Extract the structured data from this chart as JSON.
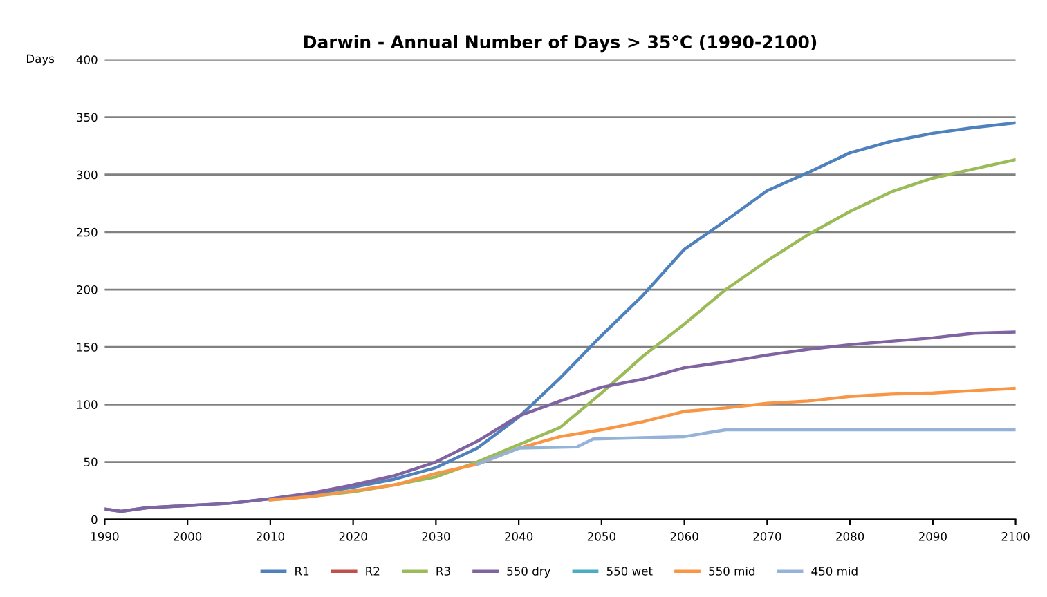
{
  "chart_data": {
    "type": "line",
    "title": "Darwin - Annual Number of Days > 35°C (1990-2100)",
    "ylabel": "Days",
    "x": [
      1990,
      1992,
      1995,
      2000,
      2005,
      2010,
      2015,
      2020,
      2025,
      2030,
      2035,
      2040,
      2045,
      2050,
      2055,
      2060,
      2065,
      2070,
      2075,
      2080,
      2085,
      2090,
      2095,
      2100
    ],
    "series": [
      {
        "name": "R1",
        "color": "#4f81bd",
        "values": [
          9,
          7,
          10,
          12,
          14,
          18,
          22,
          28,
          35,
          45,
          62,
          89,
          123,
          160,
          195,
          235,
          260,
          286,
          302,
          319,
          329,
          336,
          341,
          345
        ]
      },
      {
        "name": "R2",
        "color": "#c0504d",
        "values": [
          null,
          null,
          null,
          null,
          null,
          null,
          null,
          null,
          null,
          null,
          null,
          null,
          null,
          null,
          null,
          null,
          null,
          null,
          null,
          null,
          null,
          null,
          null,
          null
        ]
      },
      {
        "name": "R3",
        "color": "#9bbb59",
        "values": [
          null,
          null,
          null,
          null,
          null,
          17,
          20,
          24,
          30,
          37,
          50,
          65,
          80,
          110,
          142,
          170,
          200,
          225,
          248,
          268,
          285,
          297,
          305,
          313
        ]
      },
      {
        "name": "550 dry",
        "color": "#8064a2",
        "values": [
          9,
          7,
          10,
          12,
          14,
          18,
          23,
          30,
          38,
          50,
          68,
          90,
          103,
          115,
          122,
          132,
          137,
          143,
          148,
          152,
          155,
          158,
          162,
          163
        ]
      },
      {
        "name": "550 wet",
        "color": "#4bacc6",
        "values": [
          null,
          null,
          null,
          null,
          null,
          null,
          null,
          null,
          null,
          null,
          null,
          null,
          null,
          null,
          null,
          null,
          null,
          null,
          null,
          null,
          null,
          null,
          null,
          null
        ]
      },
      {
        "name": "550 mid",
        "color": "#f79646",
        "values": [
          null,
          null,
          null,
          null,
          null,
          17,
          20,
          25,
          30,
          40,
          48,
          62,
          72,
          78,
          85,
          94,
          97,
          101,
          103,
          107,
          109,
          110,
          112,
          114
        ]
      },
      {
        "name": "450 mid",
        "color": "#95b3d7",
        "x": [
          2035,
          2040,
          2047,
          2049,
          2060,
          2065,
          2100
        ],
        "values": [
          48,
          62,
          63,
          70,
          72,
          78,
          78
        ]
      }
    ],
    "xlim": [
      1990,
      2100
    ],
    "xticks": [
      1990,
      2000,
      2010,
      2020,
      2030,
      2040,
      2050,
      2060,
      2070,
      2080,
      2090,
      2100
    ],
    "ylim": [
      0,
      400
    ],
    "yticks": [
      0,
      50,
      100,
      150,
      200,
      250,
      300,
      350,
      400
    ],
    "grid": "y",
    "legend": "bottom",
    "marker": "none",
    "line_style": "solid"
  }
}
